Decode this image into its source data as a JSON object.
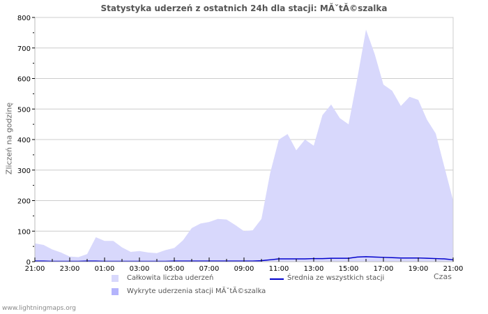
{
  "title": "Statystyka uderzeń z ostatnich 24h dla stacji: MĂˇtĂ©szalka",
  "ylabel": "Zliczeń na godzinę",
  "xaxis_name": "Czas",
  "footer": "www.lightningmaps.org",
  "colors": {
    "total_fill": "#d8d8fc",
    "detected_fill": "#b4b4fc",
    "average_line": "#0000cc",
    "grid": "#cccccc",
    "frame": "#cccccc"
  },
  "legend": [
    {
      "label": "Całkowita liczba uderzeń",
      "type": "area",
      "color": "#d8d8fc"
    },
    {
      "label": "Wykryte uderzenia stacji MĂˇtĂ©szalka",
      "type": "area",
      "color": "#b4b4fc"
    },
    {
      "label": "Średnia ze wszystkich stacji",
      "type": "line",
      "color": "#0000cc"
    }
  ],
  "chart_data": {
    "type": "area",
    "title": "Statystyka uderzeń z ostatnich 24h dla stacji: MĂˇtĂ©szalka",
    "xlabel": "Czas",
    "ylabel": "Zliczeń na godzinę",
    "ylim": [
      0,
      800
    ],
    "yticks": [
      0,
      100,
      200,
      300,
      400,
      500,
      600,
      700,
      800
    ],
    "xticks": [
      "21:00",
      "23:00",
      "01:00",
      "03:00",
      "05:00",
      "07:00",
      "09:00",
      "11:00",
      "13:00",
      "15:00",
      "17:00",
      "19:00",
      "21:00"
    ],
    "grid": true,
    "legend_position": "bottom",
    "x": [
      "21:00",
      "21:30",
      "22:00",
      "22:30",
      "23:00",
      "23:30",
      "00:00",
      "00:30",
      "01:00",
      "01:30",
      "02:00",
      "02:30",
      "03:00",
      "03:30",
      "04:00",
      "04:30",
      "05:00",
      "05:30",
      "06:00",
      "06:30",
      "07:00",
      "07:30",
      "08:00",
      "08:30",
      "09:00",
      "09:30",
      "10:00",
      "10:30",
      "11:00",
      "11:30",
      "12:00",
      "12:30",
      "13:00",
      "13:30",
      "14:00",
      "14:30",
      "15:00",
      "15:30",
      "16:00",
      "16:30",
      "17:00",
      "17:30",
      "18:00",
      "18:30",
      "19:00",
      "19:30",
      "20:00",
      "20:30",
      "21:00"
    ],
    "series": [
      {
        "name": "Całkowita liczba uderzeń",
        "values": [
          60,
          55,
          40,
          30,
          17,
          15,
          25,
          80,
          68,
          68,
          47,
          32,
          35,
          30,
          28,
          38,
          45,
          70,
          110,
          125,
          130,
          140,
          138,
          120,
          100,
          103,
          140,
          290,
          400,
          418,
          365,
          400,
          380,
          480,
          515,
          470,
          450,
          600,
          760,
          680,
          580,
          560,
          510,
          540,
          530,
          465,
          420,
          310,
          200
        ]
      },
      {
        "name": "Wykryte uderzenia stacji MĂˇtĂ©szalka",
        "values": [
          0,
          0,
          0,
          0,
          0,
          0,
          0,
          0,
          0,
          0,
          0,
          0,
          0,
          0,
          0,
          0,
          0,
          0,
          0,
          0,
          0,
          0,
          0,
          0,
          0,
          0,
          0,
          0,
          0,
          0,
          0,
          0,
          0,
          0,
          0,
          0,
          0,
          0,
          0,
          0,
          0,
          0,
          0,
          0,
          0,
          0,
          0,
          0,
          0
        ]
      },
      {
        "name": "Średnia ze wszystkich stacji",
        "values": [
          1,
          1,
          0,
          0,
          0,
          0,
          1,
          1,
          0,
          0,
          0,
          0,
          0,
          0,
          0,
          0,
          1,
          1,
          1,
          1,
          1,
          1,
          1,
          1,
          1,
          1,
          2,
          5,
          8,
          8,
          8,
          8,
          9,
          9,
          10,
          10,
          10,
          14,
          15,
          14,
          13,
          12,
          11,
          11,
          11,
          10,
          9,
          8,
          5
        ]
      }
    ]
  }
}
